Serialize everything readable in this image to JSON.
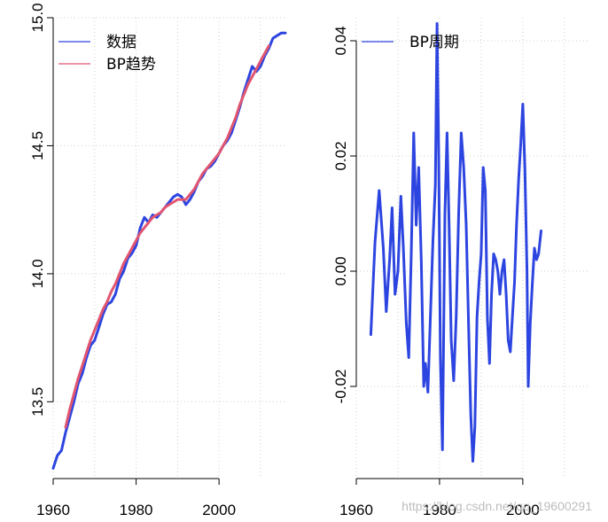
{
  "chart_data": [
    {
      "type": "line",
      "title": "",
      "xlabel": "",
      "ylabel": "",
      "xlim": [
        1960,
        2016
      ],
      "ylim": [
        13.2,
        15.0
      ],
      "grid": true,
      "legend_position": "top-left",
      "x_ticks": [
        1960,
        1980,
        2000
      ],
      "x_tick_labels": [
        "1960",
        "1980",
        "2000"
      ],
      "y_ticks": [
        13.5,
        14.0,
        14.5,
        15.0
      ],
      "y_tick_labels": [
        "13.5",
        "14.0",
        "14.5",
        "15.0"
      ],
      "series": [
        {
          "name": "数据",
          "color": "#2d45e0",
          "points": [
            [
              1960,
              13.24
            ],
            [
              1961,
              13.29
            ],
            [
              1962,
              13.31
            ],
            [
              1963,
              13.38
            ],
            [
              1964,
              13.44
            ],
            [
              1965,
              13.5
            ],
            [
              1966,
              13.57
            ],
            [
              1967,
              13.61
            ],
            [
              1968,
              13.67
            ],
            [
              1969,
              13.72
            ],
            [
              1970,
              13.74
            ],
            [
              1971,
              13.79
            ],
            [
              1972,
              13.84
            ],
            [
              1973,
              13.88
            ],
            [
              1974,
              13.89
            ],
            [
              1975,
              13.92
            ],
            [
              1976,
              13.98
            ],
            [
              1977,
              14.01
            ],
            [
              1978,
              14.06
            ],
            [
              1979,
              14.08
            ],
            [
              1980,
              14.11
            ],
            [
              1981,
              14.18
            ],
            [
              1982,
              14.22
            ],
            [
              1983,
              14.2
            ],
            [
              1984,
              14.23
            ],
            [
              1985,
              14.22
            ],
            [
              1986,
              14.24
            ],
            [
              1987,
              14.26
            ],
            [
              1988,
              14.28
            ],
            [
              1989,
              14.3
            ],
            [
              1990,
              14.31
            ],
            [
              1991,
              14.3
            ],
            [
              1992,
              14.27
            ],
            [
              1993,
              14.29
            ],
            [
              1994,
              14.32
            ],
            [
              1995,
              14.36
            ],
            [
              1996,
              14.38
            ],
            [
              1997,
              14.41
            ],
            [
              1998,
              14.42
            ],
            [
              1999,
              14.44
            ],
            [
              2000,
              14.47
            ],
            [
              2001,
              14.5
            ],
            [
              2002,
              14.52
            ],
            [
              2003,
              14.55
            ],
            [
              2004,
              14.6
            ],
            [
              2005,
              14.65
            ],
            [
              2006,
              14.71
            ],
            [
              2007,
              14.76
            ],
            [
              2008,
              14.81
            ],
            [
              2009,
              14.79
            ],
            [
              2010,
              14.81
            ],
            [
              2011,
              14.85
            ],
            [
              2012,
              14.88
            ],
            [
              2013,
              14.92
            ],
            [
              2014,
              14.93
            ],
            [
              2015,
              14.94
            ],
            [
              2016,
              14.94
            ]
          ]
        },
        {
          "name": "BP趋势",
          "color": "#e05570",
          "points": [
            [
              1963,
              13.4
            ],
            [
              1964,
              13.47
            ],
            [
              1965,
              13.53
            ],
            [
              1966,
              13.59
            ],
            [
              1967,
              13.64
            ],
            [
              1968,
              13.69
            ],
            [
              1969,
              13.74
            ],
            [
              1970,
              13.78
            ],
            [
              1971,
              13.82
            ],
            [
              1972,
              13.86
            ],
            [
              1973,
              13.89
            ],
            [
              1974,
              13.93
            ],
            [
              1975,
              13.96
            ],
            [
              1976,
              14.0
            ],
            [
              1977,
              14.04
            ],
            [
              1978,
              14.07
            ],
            [
              1979,
              14.1
            ],
            [
              1980,
              14.13
            ],
            [
              1981,
              14.16
            ],
            [
              1982,
              14.18
            ],
            [
              1983,
              14.2
            ],
            [
              1984,
              14.22
            ],
            [
              1985,
              14.23
            ],
            [
              1986,
              14.24
            ],
            [
              1987,
              14.26
            ],
            [
              1988,
              14.27
            ],
            [
              1989,
              14.28
            ],
            [
              1990,
              14.29
            ],
            [
              1991,
              14.29
            ],
            [
              1992,
              14.29
            ],
            [
              1993,
              14.31
            ],
            [
              1994,
              14.33
            ],
            [
              1995,
              14.36
            ],
            [
              1996,
              14.39
            ],
            [
              1997,
              14.41
            ],
            [
              1998,
              14.43
            ],
            [
              1999,
              14.45
            ],
            [
              2000,
              14.47
            ],
            [
              2001,
              14.5
            ],
            [
              2002,
              14.53
            ],
            [
              2003,
              14.57
            ],
            [
              2004,
              14.61
            ],
            [
              2005,
              14.66
            ],
            [
              2006,
              14.7
            ],
            [
              2007,
              14.74
            ],
            [
              2008,
              14.77
            ],
            [
              2009,
              14.8
            ],
            [
              2010,
              14.83
            ],
            [
              2011,
              14.86
            ],
            [
              2012,
              14.89
            ]
          ]
        }
      ]
    },
    {
      "type": "line",
      "title": "",
      "xlabel": "",
      "ylabel": "",
      "xlim": [
        1960,
        2016
      ],
      "ylim": [
        -0.036,
        0.044
      ],
      "grid": true,
      "legend_position": "top-left",
      "x_ticks": [
        1960,
        1980,
        2000
      ],
      "x_tick_labels": [
        "1960",
        "1980",
        "2000"
      ],
      "y_ticks": [
        -0.02,
        0.0,
        0.02,
        0.04
      ],
      "y_tick_labels": [
        "-0.02",
        "0.00",
        "0.02",
        "0.04"
      ],
      "series": [
        {
          "name": "BP周期",
          "color": "#2d45e0",
          "points": [
            [
              1963.5,
              -0.011
            ],
            [
              1964.5,
              0.005
            ],
            [
              1965.5,
              0.014
            ],
            [
              1966.5,
              0.004
            ],
            [
              1967.2,
              -0.007
            ],
            [
              1968,
              0.002
            ],
            [
              1968.6,
              0.011
            ],
            [
              1969.3,
              -0.004
            ],
            [
              1970,
              0.0
            ],
            [
              1970.7,
              0.013
            ],
            [
              1971.3,
              0.004
            ],
            [
              1972,
              -0.009
            ],
            [
              1972.6,
              -0.015
            ],
            [
              1973.2,
              0.003
            ],
            [
              1973.8,
              0.024
            ],
            [
              1974.4,
              0.008
            ],
            [
              1975,
              0.018
            ],
            [
              1975.6,
              0.002
            ],
            [
              1976.2,
              -0.02
            ],
            [
              1976.6,
              -0.016
            ],
            [
              1977.2,
              -0.021
            ],
            [
              1977.8,
              -0.008
            ],
            [
              1978.4,
              0.005
            ],
            [
              1979,
              0.015
            ],
            [
              1979.4,
              0.043
            ],
            [
              1979.8,
              0.02
            ],
            [
              1980.2,
              -0.015
            ],
            [
              1980.7,
              -0.031
            ],
            [
              1981.3,
              0.01
            ],
            [
              1981.8,
              0.024
            ],
            [
              1982.3,
              0.008
            ],
            [
              1982.8,
              -0.012
            ],
            [
              1983.4,
              -0.019
            ],
            [
              1984,
              -0.008
            ],
            [
              1984.6,
              0.01
            ],
            [
              1985.2,
              0.024
            ],
            [
              1985.8,
              0.018
            ],
            [
              1986.4,
              0.008
            ],
            [
              1987,
              -0.01
            ],
            [
              1987.5,
              -0.025
            ],
            [
              1988,
              -0.033
            ],
            [
              1988.5,
              -0.027
            ],
            [
              1989,
              -0.008
            ],
            [
              1989.5,
              -0.002
            ],
            [
              1990,
              0.003
            ],
            [
              1990.5,
              0.018
            ],
            [
              1991,
              0.014
            ],
            [
              1991.5,
              -0.008
            ],
            [
              1992,
              -0.016
            ],
            [
              1992.5,
              -0.004
            ],
            [
              1993,
              0.003
            ],
            [
              1993.5,
              0.002
            ],
            [
              1994,
              0.0
            ],
            [
              1994.5,
              -0.004
            ],
            [
              1995,
              0.0
            ],
            [
              1995.5,
              0.002
            ],
            [
              1996,
              -0.004
            ],
            [
              1996.5,
              -0.012
            ],
            [
              1997,
              -0.014
            ],
            [
              1997.5,
              -0.008
            ],
            [
              1998,
              -0.002
            ],
            [
              1998.5,
              0.008
            ],
            [
              1999,
              0.016
            ],
            [
              1999.5,
              0.022
            ],
            [
              2000,
              0.029
            ],
            [
              2000.5,
              0.018
            ],
            [
              2001,
              0.0
            ],
            [
              2001.3,
              -0.02
            ],
            [
              2001.8,
              -0.009
            ],
            [
              2002.3,
              -0.002
            ],
            [
              2002.8,
              0.004
            ],
            [
              2003.3,
              0.002
            ],
            [
              2003.8,
              0.003
            ],
            [
              2004.4,
              0.007
            ]
          ]
        }
      ]
    }
  ],
  "watermark": "https://blog.csdn.net/qq_19600291"
}
